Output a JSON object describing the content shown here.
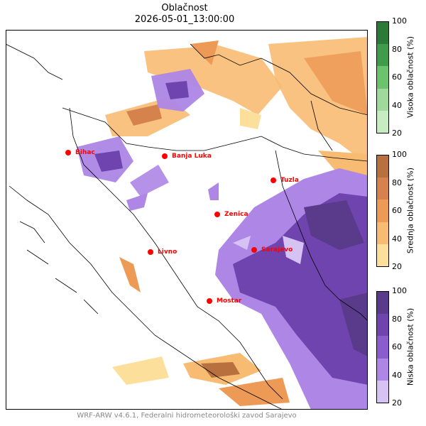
{
  "title": {
    "line1": "Oblačnost",
    "line2": "2026-05-01_13:00:00"
  },
  "footer": "WRF-ARW v4.6.1, Federalni hidrometeorološki zavod Sarajevo",
  "cities": [
    {
      "name": "Bihac"
    },
    {
      "name": "Banja Luka"
    },
    {
      "name": "Tuzla"
    },
    {
      "name": "Zenica"
    },
    {
      "name": "Livno"
    },
    {
      "name": "Sarajevo"
    },
    {
      "name": "Mostar"
    }
  ],
  "colorbars": [
    {
      "label": "Visoka oblačnost (%)",
      "ticks": [
        "100",
        "80",
        "60",
        "40",
        "20"
      ],
      "colors": [
        "#c7ecc2",
        "#9fd99b",
        "#6cc36d",
        "#3f9c4a",
        "#2c7a38"
      ]
    },
    {
      "label": "Srednja oblačnost (%)",
      "ticks": [
        "100",
        "80",
        "60",
        "40",
        "20"
      ],
      "colors": [
        "#fddf9c",
        "#f8bb72",
        "#ee9a57",
        "#d5824c",
        "#b8703f"
      ]
    },
    {
      "label": "Niska oblačnost (%)",
      "ticks": [
        "100",
        "80",
        "60",
        "40",
        "20"
      ],
      "colors": [
        "#d6c3f3",
        "#ad86e6",
        "#8b5ccc",
        "#6f44ae",
        "#5a3a8a"
      ]
    }
  ],
  "colors": {
    "city_marker": "#ff0000",
    "coast": "#000000"
  }
}
